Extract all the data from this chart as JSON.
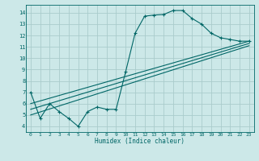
{
  "title": "",
  "xlabel": "Humidex (Indice chaleur)",
  "ylabel": "",
  "xlim": [
    -0.5,
    23.5
  ],
  "ylim": [
    3.5,
    14.7
  ],
  "xticks": [
    0,
    1,
    2,
    3,
    4,
    5,
    6,
    7,
    8,
    9,
    10,
    11,
    12,
    13,
    14,
    15,
    16,
    17,
    18,
    19,
    20,
    21,
    22,
    23
  ],
  "yticks": [
    4,
    5,
    6,
    7,
    8,
    9,
    10,
    11,
    12,
    13,
    14
  ],
  "bg_color": "#cce8e8",
  "line_color": "#006666",
  "grid_color": "#aacccc",
  "curve1_x": [
    0,
    1,
    2,
    3,
    4,
    5,
    6,
    7,
    8,
    9,
    10,
    11,
    12,
    13,
    14,
    15,
    16,
    17,
    18,
    19,
    20,
    21,
    22,
    23
  ],
  "curve1_y": [
    7.0,
    4.7,
    6.0,
    5.3,
    4.7,
    4.0,
    5.3,
    5.7,
    5.5,
    5.5,
    8.8,
    12.2,
    13.7,
    13.8,
    13.85,
    14.2,
    14.2,
    13.5,
    13.0,
    12.2,
    11.8,
    11.65,
    11.5,
    11.5
  ],
  "curve2_x": [
    0,
    23
  ],
  "curve2_y": [
    5.5,
    11.3
  ],
  "curve3_x": [
    0,
    23
  ],
  "curve3_y": [
    6.0,
    11.5
  ],
  "curve4_x": [
    0,
    23
  ],
  "curve4_y": [
    5.0,
    11.1
  ]
}
